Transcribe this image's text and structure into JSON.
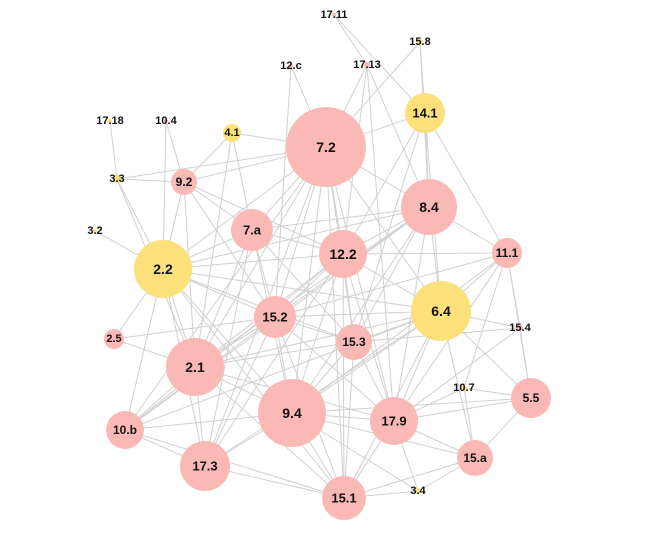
{
  "colors": {
    "pink": "#fbb9b5",
    "yellow": "#fce07a",
    "edge": "#d0d0d0"
  },
  "nodes": [
    {
      "id": "17.11",
      "color": "pink"
    },
    {
      "id": "15.8",
      "color": "yellow"
    },
    {
      "id": "12.c",
      "color": "pink"
    },
    {
      "id": "17.13",
      "color": "pink"
    },
    {
      "id": "14.1",
      "color": "yellow"
    },
    {
      "id": "17.18",
      "color": "yellow"
    },
    {
      "id": "10.4",
      "color": "pink"
    },
    {
      "id": "4.1",
      "color": "yellow"
    },
    {
      "id": "7.2",
      "color": "pink"
    },
    {
      "id": "3.3",
      "color": "yellow"
    },
    {
      "id": "9.2",
      "color": "pink"
    },
    {
      "id": "8.4",
      "color": "pink"
    },
    {
      "id": "3.2",
      "color": "yellow"
    },
    {
      "id": "7.a",
      "color": "pink"
    },
    {
      "id": "12.2",
      "color": "pink"
    },
    {
      "id": "11.1",
      "color": "pink"
    },
    {
      "id": "2.2",
      "color": "yellow"
    },
    {
      "id": "6.4",
      "color": "yellow"
    },
    {
      "id": "15.2",
      "color": "pink"
    },
    {
      "id": "15.4",
      "color": "pink"
    },
    {
      "id": "2.5",
      "color": "pink"
    },
    {
      "id": "15.3",
      "color": "pink"
    },
    {
      "id": "2.1",
      "color": "pink"
    },
    {
      "id": "10.7",
      "color": "yellow"
    },
    {
      "id": "5.5",
      "color": "pink"
    },
    {
      "id": "9.4",
      "color": "pink"
    },
    {
      "id": "17.9",
      "color": "pink"
    },
    {
      "id": "10.b",
      "color": "pink"
    },
    {
      "id": "15.a",
      "color": "pink"
    },
    {
      "id": "17.3",
      "color": "pink"
    },
    {
      "id": "3.4",
      "color": "yellow"
    },
    {
      "id": "15.1",
      "color": "pink"
    }
  ],
  "edges": [
    [
      "17.11",
      "17.13"
    ],
    [
      "17.11",
      "14.1"
    ],
    [
      "15.8",
      "14.1"
    ],
    [
      "15.8",
      "7.2"
    ],
    [
      "15.8",
      "8.4"
    ],
    [
      "12.c",
      "7.2"
    ],
    [
      "12.c",
      "15.2"
    ],
    [
      "17.13",
      "7.2"
    ],
    [
      "17.13",
      "12.2"
    ],
    [
      "17.13",
      "8.4"
    ],
    [
      "17.13",
      "17.9"
    ],
    [
      "14.1",
      "7.2"
    ],
    [
      "14.1",
      "8.4"
    ],
    [
      "14.1",
      "6.4"
    ],
    [
      "14.1",
      "12.2"
    ],
    [
      "14.1",
      "11.1"
    ],
    [
      "14.1",
      "15.3"
    ],
    [
      "17.18",
      "3.3"
    ],
    [
      "10.4",
      "9.2"
    ],
    [
      "10.4",
      "2.2"
    ],
    [
      "4.1",
      "7.a"
    ],
    [
      "4.1",
      "7.2"
    ],
    [
      "4.1",
      "9.2"
    ],
    [
      "4.1",
      "2.1"
    ],
    [
      "7.2",
      "9.2"
    ],
    [
      "7.2",
      "3.3"
    ],
    [
      "7.2",
      "7.a"
    ],
    [
      "7.2",
      "12.2"
    ],
    [
      "7.2",
      "8.4"
    ],
    [
      "7.2",
      "2.2"
    ],
    [
      "7.2",
      "15.2"
    ],
    [
      "7.2",
      "15.3"
    ],
    [
      "7.2",
      "2.1"
    ],
    [
      "7.2",
      "9.4"
    ],
    [
      "7.2",
      "17.9"
    ],
    [
      "7.2",
      "6.4"
    ],
    [
      "7.2",
      "15.1"
    ],
    [
      "7.2",
      "17.3"
    ],
    [
      "7.2",
      "10.b"
    ],
    [
      "3.3",
      "2.2"
    ],
    [
      "3.3",
      "2.1"
    ],
    [
      "3.3",
      "9.2"
    ],
    [
      "9.2",
      "2.2"
    ],
    [
      "9.2",
      "7.a"
    ],
    [
      "9.2",
      "15.2"
    ],
    [
      "9.2",
      "2.1"
    ],
    [
      "9.2",
      "12.2"
    ],
    [
      "8.4",
      "12.2"
    ],
    [
      "8.4",
      "6.4"
    ],
    [
      "8.4",
      "11.1"
    ],
    [
      "8.4",
      "15.2"
    ],
    [
      "8.4",
      "2.1"
    ],
    [
      "8.4",
      "9.4"
    ],
    [
      "8.4",
      "17.9"
    ],
    [
      "8.4",
      "7.a"
    ],
    [
      "8.4",
      "15.3"
    ],
    [
      "8.4",
      "2.2"
    ],
    [
      "8.4",
      "10.b"
    ],
    [
      "3.2",
      "2.2"
    ],
    [
      "7.a",
      "2.2"
    ],
    [
      "7.a",
      "15.2"
    ],
    [
      "7.a",
      "12.2"
    ],
    [
      "7.a",
      "2.1"
    ],
    [
      "7.a",
      "9.4"
    ],
    [
      "7.a",
      "15.3"
    ],
    [
      "7.a",
      "17.3"
    ],
    [
      "12.2",
      "15.2"
    ],
    [
      "12.2",
      "6.4"
    ],
    [
      "12.2",
      "2.2"
    ],
    [
      "12.2",
      "15.3"
    ],
    [
      "12.2",
      "2.1"
    ],
    [
      "12.2",
      "9.4"
    ],
    [
      "12.2",
      "17.9"
    ],
    [
      "12.2",
      "15.1"
    ],
    [
      "12.2",
      "10.b"
    ],
    [
      "12.2",
      "17.3"
    ],
    [
      "12.2",
      "11.1"
    ],
    [
      "11.1",
      "6.4"
    ],
    [
      "11.1",
      "15.4"
    ],
    [
      "11.1",
      "5.5"
    ],
    [
      "11.1",
      "17.9"
    ],
    [
      "11.1",
      "9.4"
    ],
    [
      "11.1",
      "10.7"
    ],
    [
      "11.1",
      "15.2"
    ],
    [
      "2.2",
      "15.2"
    ],
    [
      "2.2",
      "2.1"
    ],
    [
      "2.2",
      "10.b"
    ],
    [
      "2.2",
      "9.4"
    ],
    [
      "2.2",
      "2.5"
    ],
    [
      "2.2",
      "15.3"
    ],
    [
      "2.2",
      "17.3"
    ],
    [
      "2.2",
      "6.4"
    ],
    [
      "2.2",
      "15.1"
    ],
    [
      "6.4",
      "15.2"
    ],
    [
      "6.4",
      "15.3"
    ],
    [
      "6.4",
      "9.4"
    ],
    [
      "6.4",
      "17.9"
    ],
    [
      "6.4",
      "15.4"
    ],
    [
      "6.4",
      "5.5"
    ],
    [
      "6.4",
      "2.1"
    ],
    [
      "6.4",
      "15.a"
    ],
    [
      "6.4",
      "15.1"
    ],
    [
      "6.4",
      "17.3"
    ],
    [
      "6.4",
      "10.b"
    ],
    [
      "15.2",
      "15.3"
    ],
    [
      "15.2",
      "2.1"
    ],
    [
      "15.2",
      "9.4"
    ],
    [
      "15.2",
      "17.3"
    ],
    [
      "15.2",
      "15.1"
    ],
    [
      "15.2",
      "2.5"
    ],
    [
      "15.2",
      "10.b"
    ],
    [
      "15.2",
      "17.9"
    ],
    [
      "15.4",
      "5.5"
    ],
    [
      "15.4",
      "17.9"
    ],
    [
      "15.4",
      "15.3"
    ],
    [
      "2.5",
      "2.1"
    ],
    [
      "15.3",
      "9.4"
    ],
    [
      "15.3",
      "17.9"
    ],
    [
      "15.3",
      "15.1"
    ],
    [
      "15.3",
      "2.1"
    ],
    [
      "2.1",
      "10.b"
    ],
    [
      "2.1",
      "9.4"
    ],
    [
      "2.1",
      "17.3"
    ],
    [
      "2.1",
      "15.1"
    ],
    [
      "2.1",
      "17.9"
    ],
    [
      "10.7",
      "17.9"
    ],
    [
      "10.7",
      "15.a"
    ],
    [
      "10.7",
      "5.5"
    ],
    [
      "5.5",
      "17.9"
    ],
    [
      "5.5",
      "15.a"
    ],
    [
      "9.4",
      "17.9"
    ],
    [
      "9.4",
      "10.b"
    ],
    [
      "9.4",
      "17.3"
    ],
    [
      "9.4",
      "15.1"
    ],
    [
      "9.4",
      "15.a"
    ],
    [
      "9.4",
      "3.4"
    ],
    [
      "9.4",
      "5.5"
    ],
    [
      "17.9",
      "15.1"
    ],
    [
      "17.9",
      "15.a"
    ],
    [
      "17.9",
      "3.4"
    ],
    [
      "10.b",
      "17.3"
    ],
    [
      "10.b",
      "15.1"
    ],
    [
      "15.a",
      "15.1"
    ],
    [
      "15.a",
      "3.4"
    ],
    [
      "17.3",
      "15.1"
    ],
    [
      "3.4",
      "15.1"
    ]
  ]
}
